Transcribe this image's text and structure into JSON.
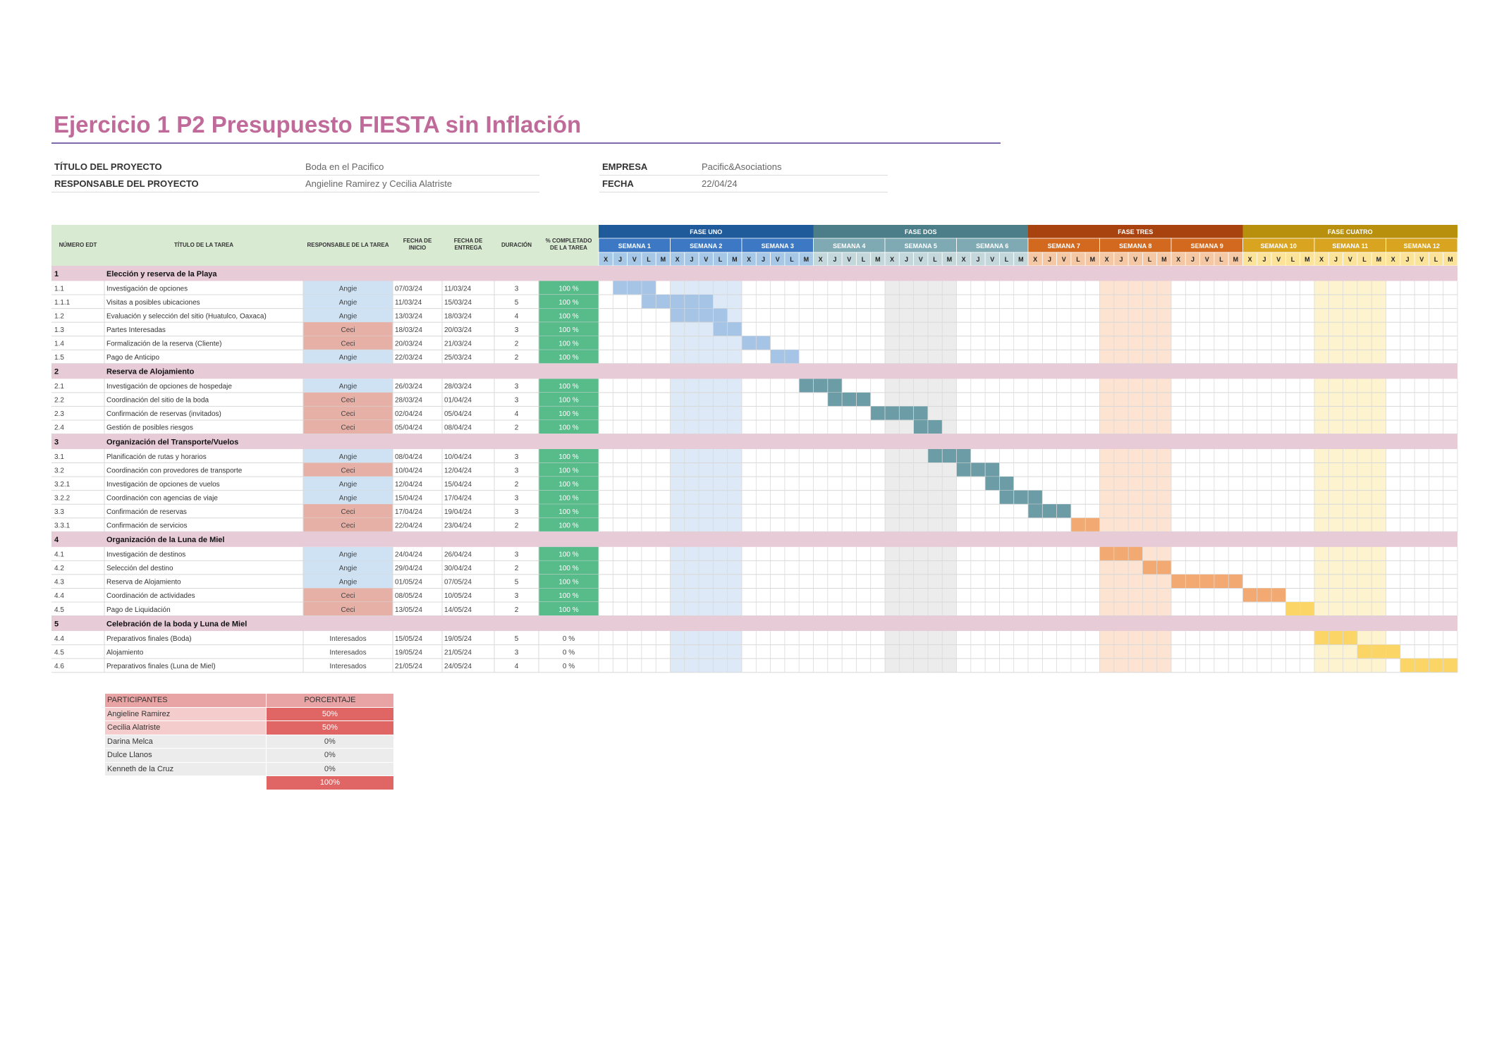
{
  "title": "Ejercicio 1 P2  Presupuesto FIESTA sin Inflación",
  "project": {
    "title_label": "TÍTULO DEL PROYECTO",
    "title_value": "Boda en el Pacifico",
    "manager_label": "RESPONSABLE DEL PROYECTO",
    "manager_value": "Angieline Ramirez y Cecilia Alatriste",
    "company_label": "EMPRESA",
    "company_value": "Pacific&Asociations",
    "date_label": "FECHA",
    "date_value": "22/04/24"
  },
  "table": {
    "headers": {
      "edt": "NÚMERO EDT",
      "task": "TÍTULO DE LA TAREA",
      "owner": "RESPONSABLE DE LA TAREA",
      "start": [
        "FECHA DE",
        "INICIO"
      ],
      "end": [
        "FECHA DE",
        "ENTREGA"
      ],
      "duration": "DURACIÓN",
      "pct": [
        "% COMPLETADO",
        "DE LA TAREA"
      ]
    },
    "phases": [
      {
        "name": "FASE UNO",
        "color": "#1f5a9a"
      },
      {
        "name": "FASE DOS",
        "color": "#4b7e89"
      },
      {
        "name": "FASE TRES",
        "color": "#a8430f"
      },
      {
        "name": "FASE CUATRO",
        "color": "#b8900d"
      }
    ],
    "weeks": [
      "SEMANA 1",
      "SEMANA 2",
      "SEMANA 3",
      "SEMANA 4",
      "SEMANA 5",
      "SEMANA 6",
      "SEMANA 7",
      "SEMANA 8",
      "SEMANA 9",
      "SEMANA 10",
      "SEMANA 11",
      "SEMANA 12"
    ],
    "week_colors": [
      "#3c78c4",
      "#7fa9b3",
      "#d2691e",
      "#d9a520"
    ],
    "day_colors": [
      "#a6c7e6",
      "#c4d8dc",
      "#f5c8a5",
      "#fbe39a"
    ],
    "bar_colors": [
      "#a5c4e6",
      "#6c9da7",
      "#f2aa72",
      "#fbd565"
    ],
    "stripe_colors": [
      "#dde9f6",
      "#ececec",
      "#fce3d2",
      "#fdf3cf"
    ],
    "days": [
      "X",
      "J",
      "V",
      "L",
      "M"
    ],
    "rows": [
      {
        "kind": "section",
        "edt": "1",
        "title": "Elección y reserva de la Playa"
      },
      {
        "kind": "task",
        "edt": "1.1",
        "title": "Investigación de opciones",
        "owner": "Angie",
        "start": "07/03/24",
        "end": "11/03/24",
        "duration": "3",
        "pct": "100 %",
        "bar": [
          1,
          3
        ],
        "phase": 0
      },
      {
        "kind": "task",
        "edt": "1.1.1",
        "title": "Visitas a posibles ubicaciones",
        "owner": "Angie",
        "start": "11/03/24",
        "end": "15/03/24",
        "duration": "5",
        "pct": "100 %",
        "bar": [
          3,
          5
        ],
        "phase": 0
      },
      {
        "kind": "task",
        "edt": "1.2",
        "title": "Evaluación y selección del sitio (Huatulco, Oaxaca)",
        "owner": "Angie",
        "start": "13/03/24",
        "end": "18/03/24",
        "duration": "4",
        "pct": "100 %",
        "bar": [
          5,
          4
        ],
        "phase": 0
      },
      {
        "kind": "task",
        "edt": "1.3",
        "title": "Partes Interesadas",
        "owner": "Ceci",
        "start": "18/03/24",
        "end": "20/03/24",
        "duration": "3",
        "pct": "100 %",
        "bar": [
          8,
          2
        ],
        "phase": 0
      },
      {
        "kind": "task",
        "edt": "1.4",
        "title": "Formalización de la reserva (Cliente)",
        "owner": "Ceci",
        "start": "20/03/24",
        "end": "21/03/24",
        "duration": "2",
        "pct": "100 %",
        "bar": [
          10,
          2
        ],
        "phase": 0
      },
      {
        "kind": "task",
        "edt": "1.5",
        "title": "Pago de Anticipo",
        "owner": "Angie",
        "start": "22/03/24",
        "end": "25/03/24",
        "duration": "2",
        "pct": "100 %",
        "bar": [
          12,
          2
        ],
        "phase": 0
      },
      {
        "kind": "section",
        "edt": "2",
        "title": "Reserva de Alojamiento"
      },
      {
        "kind": "task",
        "edt": "2.1",
        "title": "Investigación de opciones de hospedaje",
        "owner": "Angie",
        "start": "26/03/24",
        "end": "28/03/24",
        "duration": "3",
        "pct": "100 %",
        "bar": [
          14,
          3
        ],
        "phase": 1
      },
      {
        "kind": "task",
        "edt": "2.2",
        "title": "Coordinación del sitio de la boda",
        "owner": "Ceci",
        "start": "28/03/24",
        "end": "01/04/24",
        "duration": "3",
        "pct": "100 %",
        "bar": [
          16,
          3
        ],
        "phase": 1
      },
      {
        "kind": "task",
        "edt": "2.3",
        "title": "Confirmación de reservas (invitados)",
        "owner": "Ceci",
        "start": "02/04/24",
        "end": "05/04/24",
        "duration": "4",
        "pct": "100 %",
        "bar": [
          19,
          4
        ],
        "phase": 1
      },
      {
        "kind": "task",
        "edt": "2.4",
        "title": "Gestión de posibles riesgos",
        "owner": "Ceci",
        "start": "05/04/24",
        "end": "08/04/24",
        "duration": "2",
        "pct": "100 %",
        "bar": [
          22,
          2
        ],
        "phase": 1
      },
      {
        "kind": "section",
        "edt": "3",
        "title": "Organización del Transporte/Vuelos"
      },
      {
        "kind": "task",
        "edt": "3.1",
        "title": "Planificación de rutas y horarios",
        "owner": "Angie",
        "start": "08/04/24",
        "end": "10/04/24",
        "duration": "3",
        "pct": "100 %",
        "bar": [
          23,
          3
        ],
        "phase": 1
      },
      {
        "kind": "task",
        "edt": "3.2",
        "title": "Coordinación con provedores de transporte",
        "owner": "Ceci",
        "start": "10/04/24",
        "end": "12/04/24",
        "duration": "3",
        "pct": "100 %",
        "bar": [
          25,
          3
        ],
        "phase": 1
      },
      {
        "kind": "task",
        "edt": "3.2.1",
        "title": "Investigación de opciones de vuelos",
        "owner": "Angie",
        "start": "12/04/24",
        "end": "15/04/24",
        "duration": "2",
        "pct": "100 %",
        "bar": [
          27,
          2
        ],
        "phase": 1
      },
      {
        "kind": "task",
        "edt": "3.2.2",
        "title": "Coordinación con agencias de viaje",
        "owner": "Angie",
        "start": "15/04/24",
        "end": "17/04/24",
        "duration": "3",
        "pct": "100 %",
        "bar": [
          28,
          3
        ],
        "phase": 1
      },
      {
        "kind": "task",
        "edt": "3.3",
        "title": "Confirmación de reservas",
        "owner": "Ceci",
        "start": "17/04/24",
        "end": "19/04/24",
        "duration": "3",
        "pct": "100 %",
        "bar": [
          30,
          3
        ],
        "phase": 1
      },
      {
        "kind": "task",
        "edt": "3.3.1",
        "title": "Confirmación de servicios",
        "owner": "Ceci",
        "start": "22/04/24",
        "end": "23/04/24",
        "duration": "2",
        "pct": "100 %",
        "bar": [
          33,
          2
        ],
        "phase": 2
      },
      {
        "kind": "section",
        "edt": "4",
        "title": "Organización de la Luna de Miel"
      },
      {
        "kind": "task",
        "edt": "4.1",
        "title": "Investigación de destinos",
        "owner": "Angie",
        "start": "24/04/24",
        "end": "26/04/24",
        "duration": "3",
        "pct": "100 %",
        "bar": [
          35,
          3
        ],
        "phase": 2
      },
      {
        "kind": "task",
        "edt": "4.2",
        "title": "Selección del destino",
        "owner": "Angie",
        "start": "29/04/24",
        "end": "30/04/24",
        "duration": "2",
        "pct": "100 %",
        "bar": [
          38,
          2
        ],
        "phase": 2
      },
      {
        "kind": "task",
        "edt": "4.3",
        "title": "Reserva de Alojamiento",
        "owner": "Angie",
        "start": "01/05/24",
        "end": "07/05/24",
        "duration": "5",
        "pct": "100 %",
        "bar": [
          40,
          5
        ],
        "phase": 2
      },
      {
        "kind": "task",
        "edt": "4.4",
        "title": "Coordinación de actividades",
        "owner": "Ceci",
        "start": "08/05/24",
        "end": "10/05/24",
        "duration": "3",
        "pct": "100 %",
        "bar": [
          45,
          3
        ],
        "phase": 2
      },
      {
        "kind": "task",
        "edt": "4.5",
        "title": "Pago de Liquidación",
        "owner": "Ceci",
        "start": "13/05/24",
        "end": "14/05/24",
        "duration": "2",
        "pct": "100 %",
        "bar": [
          48,
          2
        ],
        "phase": 3
      },
      {
        "kind": "section",
        "edt": "5",
        "title": "Celebración de la boda y Luna de Miel"
      },
      {
        "kind": "task",
        "edt": "4.4",
        "title": "Preparativos finales (Boda)",
        "owner": "Interesados",
        "start": "15/05/24",
        "end": "19/05/24",
        "duration": "5",
        "pct": "0 %",
        "bar": [
          50,
          3
        ],
        "phase": 3
      },
      {
        "kind": "task",
        "edt": "4.5",
        "title": "Alojamiento",
        "owner": "Interesados",
        "start": "19/05/24",
        "end": "21/05/24",
        "duration": "3",
        "pct": "0 %",
        "bar": [
          53,
          3
        ],
        "phase": 3
      },
      {
        "kind": "task",
        "edt": "4.6",
        "title": "Preparativos finales (Luna de Miel)",
        "owner": "Interesados",
        "start": "21/05/24",
        "end": "24/05/24",
        "duration": "4",
        "pct": "0 %",
        "bar": [
          56,
          4
        ],
        "phase": 3
      }
    ]
  },
  "participants": {
    "header_name": "PARTICIPANTES",
    "header_pct": "PORCENTAJE",
    "rows": [
      {
        "name": "Angieline Ramirez",
        "pct": "50%"
      },
      {
        "name": "Cecilia Alatriste",
        "pct": "50%"
      },
      {
        "name": "Darina Melca",
        "pct": "0%"
      },
      {
        "name": "Dulce Llanos",
        "pct": "0%"
      },
      {
        "name": "Kenneth de la Cruz",
        "pct": "0%"
      }
    ],
    "total": "100%"
  },
  "colors": {
    "title": "#c06a9a",
    "header_green": "#d9ead3",
    "section_pink": "#e7cbd6",
    "owner_angie": "#cfe2f3",
    "owner_ceci": "#e6b0a6",
    "pct_green": "#57bb8a",
    "part_red": "#e06666",
    "part_pink": "#f4cccc"
  }
}
